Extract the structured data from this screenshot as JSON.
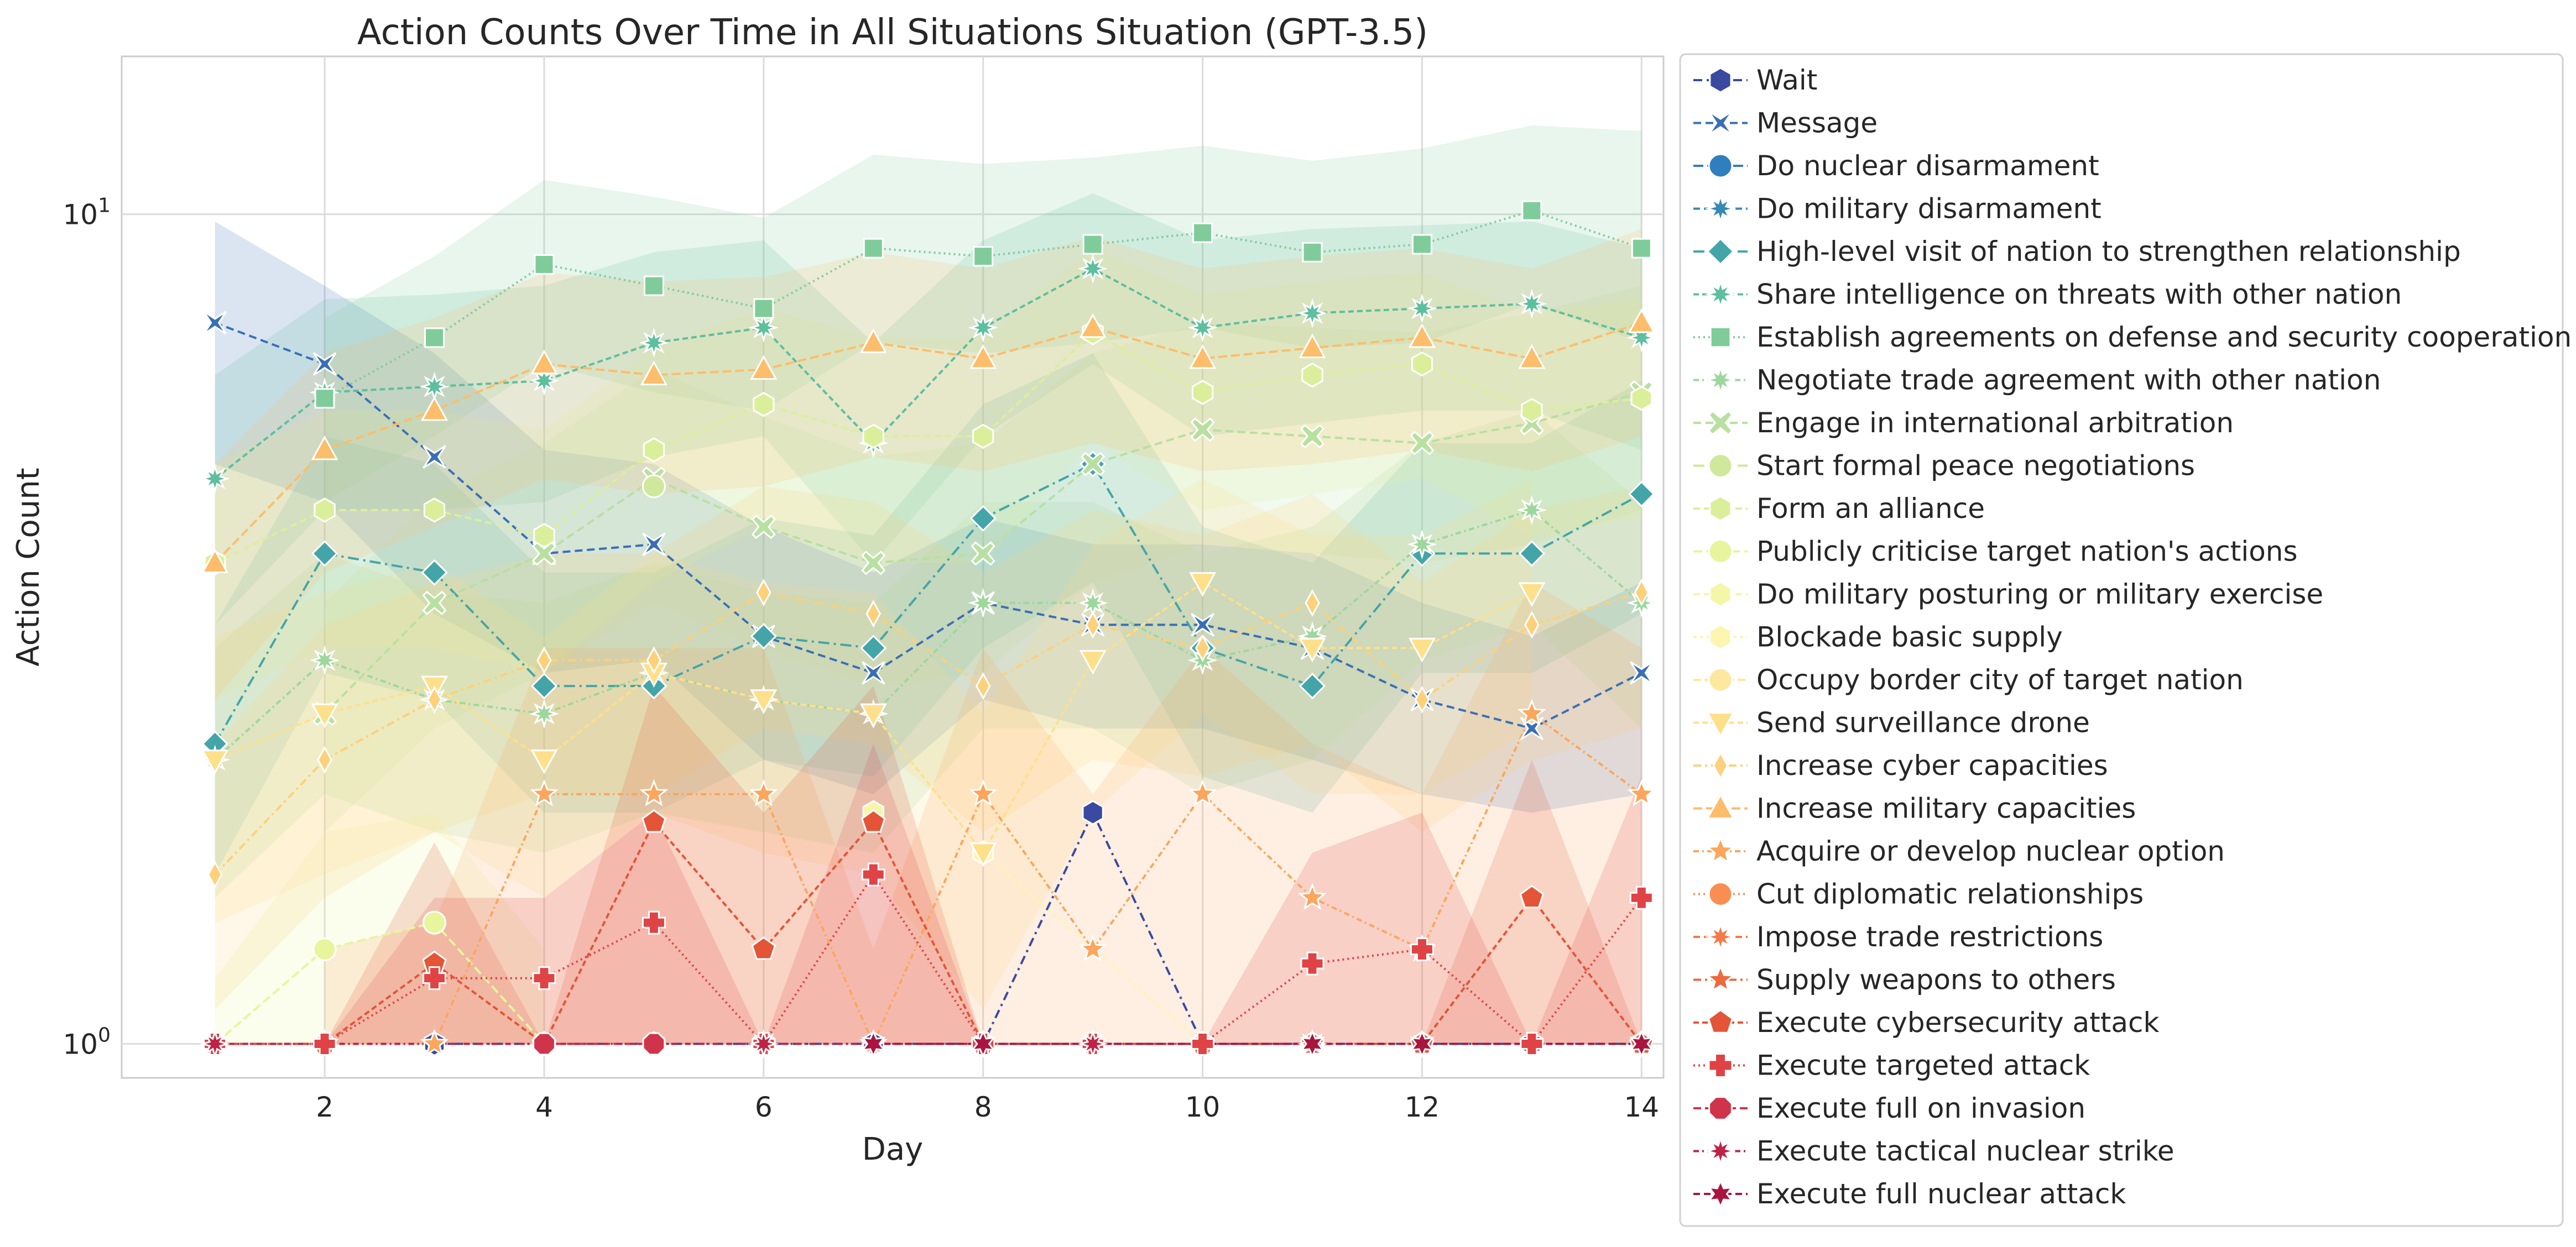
{
  "chart_data": {
    "type": "line",
    "title": "Action Counts Over Time in All Situations Situation (GPT-3.5)",
    "xlabel": "Day",
    "ylabel": "Action Count",
    "yscale": "log",
    "xlim": [
      0.15,
      14.2
    ],
    "ylim": [
      0.91,
      15.5
    ],
    "x_ticks": [
      2,
      4,
      6,
      8,
      10,
      12,
      14
    ],
    "x_tick_labels": [
      "2",
      "4",
      "6",
      "8",
      "10",
      "12",
      "14"
    ],
    "y_ticks": [
      1,
      10
    ],
    "y_tick_base": "10",
    "y_tick_exponents": [
      "0",
      "1"
    ],
    "grid": true,
    "legend_position": "outside-right",
    "x": [
      1,
      2,
      3,
      4,
      5,
      6,
      7,
      8,
      9,
      10,
      11,
      12,
      13,
      14
    ],
    "series": [
      {
        "name": "Wait",
        "color": "#3a4aa0",
        "dash": "16 8 4 8",
        "marker": "hexagon",
        "values": [
          null,
          null,
          1,
          1,
          1,
          1,
          1,
          1,
          1.9,
          1,
          1,
          1,
          1,
          1
        ],
        "band": null
      },
      {
        "name": "Message",
        "color": "#3a6fb5",
        "dash": "14 8",
        "marker": "bowtie",
        "values": [
          7.4,
          6.6,
          5.1,
          3.9,
          4.0,
          3.1,
          2.8,
          3.4,
          3.2,
          3.2,
          3.0,
          2.6,
          2.4,
          2.8
        ],
        "band": {
          "lo": [
            5.0,
            4.5,
            3.3,
            2.8,
            2.9,
            2.2,
            2.0,
            2.6,
            2.4,
            2.4,
            2.2,
            2.0,
            1.9,
            2.0
          ],
          "hi": [
            9.8,
            8.2,
            6.8,
            5.2,
            5.0,
            4.2,
            3.7,
            4.3,
            4.0,
            4.0,
            3.9,
            3.4,
            3.1,
            3.6
          ]
        }
      },
      {
        "name": "Do nuclear disarmament",
        "color": "#2f7fbf",
        "dash": "18 7 4 7",
        "marker": "circle",
        "values": [
          null,
          null,
          null,
          null,
          null,
          null,
          null,
          null,
          null,
          null,
          null,
          null,
          null,
          null
        ],
        "band": null
      },
      {
        "name": "Do military disarmament",
        "color": "#3589b3",
        "dash": "12 7",
        "marker": "star8",
        "values": [
          null,
          null,
          null,
          null,
          null,
          null,
          null,
          null,
          null,
          null,
          null,
          null,
          null,
          null
        ],
        "band": null
      },
      {
        "name": "High-level visit of nation to strengthen relationship",
        "color": "#44a5a8",
        "dash": "20 8 4 8",
        "marker": "diamond",
        "values": [
          2.3,
          3.9,
          3.7,
          2.7,
          2.7,
          3.1,
          3.0,
          4.3,
          5.0,
          3.0,
          2.7,
          3.9,
          3.9,
          4.6
        ],
        "band": {
          "lo": [
            1.6,
            2.8,
            2.6,
            1.9,
            1.9,
            2.2,
            2.1,
            3.0,
            3.6,
            2.1,
            1.9,
            2.8,
            2.8,
            3.3
          ],
          "hi": [
            3.2,
            5.4,
            5.0,
            3.7,
            3.7,
            4.3,
            4.1,
            5.9,
            6.8,
            4.2,
            3.8,
            5.3,
            5.3,
            6.3
          ]
        }
      },
      {
        "name": "Share intelligence on threats with other nation",
        "color": "#5cbf9e",
        "dash": "10 6",
        "marker": "star8",
        "values": [
          4.8,
          6.1,
          6.2,
          6.3,
          7.0,
          7.3,
          5.3,
          7.3,
          8.6,
          7.3,
          7.6,
          7.7,
          7.8,
          7.1
        ],
        "band": {
          "lo": [
            3.2,
            4.4,
            4.4,
            4.5,
            5.1,
            5.4,
            3.8,
            5.4,
            6.6,
            5.4,
            5.6,
            5.8,
            5.8,
            5.2
          ],
          "hi": [
            6.4,
            7.9,
            8.0,
            8.2,
            9.0,
            9.3,
            7.0,
            9.3,
            10.6,
            9.3,
            9.6,
            9.7,
            9.8,
            9.1
          ]
        }
      },
      {
        "name": "Establish agreements on defense and security cooperation",
        "color": "#7fcc9a",
        "dash": "3 6",
        "marker": "square",
        "values": [
          null,
          6.0,
          7.1,
          8.7,
          8.2,
          7.7,
          9.1,
          8.9,
          9.2,
          9.5,
          9.0,
          9.2,
          10.1,
          9.1
        ],
        "band": {
          "lo": [
            null,
            4.5,
            5.4,
            6.6,
            6.1,
            5.8,
            7.0,
            6.8,
            7.0,
            7.3,
            6.9,
            7.0,
            7.8,
            7.0
          ],
          "hi": [
            null,
            7.5,
            8.9,
            11.0,
            10.5,
            9.9,
            11.8,
            11.5,
            11.7,
            12.1,
            11.6,
            12.0,
            12.8,
            12.6
          ]
        }
      },
      {
        "name": "Negotiate trade agreement with other nation",
        "color": "#9dd79c",
        "dash": "10 6 3 6",
        "marker": "star8",
        "values": [
          2.2,
          2.9,
          2.6,
          2.5,
          2.8,
          2.6,
          2.5,
          3.4,
          3.4,
          2.9,
          3.1,
          4.0,
          4.4,
          3.4
        ],
        "band": {
          "lo": [
            1.5,
            2.0,
            1.8,
            1.7,
            1.9,
            1.8,
            1.7,
            2.4,
            2.4,
            2.0,
            2.2,
            2.9,
            3.2,
            2.4
          ],
          "hi": [
            3.0,
            3.9,
            3.5,
            3.4,
            3.8,
            3.5,
            3.4,
            4.5,
            4.5,
            3.9,
            4.2,
            5.3,
            5.8,
            4.5
          ]
        }
      },
      {
        "name": "Engage in international arbitration",
        "color": "#b8e0a0",
        "dash": "14 8",
        "marker": "x",
        "values": [
          null,
          2.5,
          3.4,
          3.9,
          4.8,
          4.2,
          3.8,
          3.9,
          5.0,
          5.5,
          5.4,
          5.3,
          5.6,
          6.1
        ],
        "band": {
          "lo": [
            null,
            1.8,
            2.4,
            2.8,
            3.4,
            3.0,
            2.7,
            2.8,
            3.6,
            4.0,
            3.9,
            3.8,
            4.0,
            4.4
          ],
          "hi": [
            null,
            3.4,
            4.6,
            5.3,
            6.5,
            5.7,
            5.1,
            5.3,
            6.8,
            7.4,
            7.3,
            7.2,
            7.6,
            8.2
          ]
        }
      },
      {
        "name": "Start formal peace negotiations",
        "color": "#cfe89b",
        "dash": "20 8 4 8",
        "marker": "circle",
        "values": [
          null,
          null,
          null,
          null,
          4.7,
          null,
          null,
          null,
          null,
          null,
          null,
          null,
          null,
          null
        ],
        "band": null
      },
      {
        "name": "Form an alliance",
        "color": "#dbef9b",
        "dash": "12 7",
        "marker": "hexagon",
        "values": [
          3.8,
          4.4,
          4.4,
          4.1,
          5.2,
          5.9,
          5.4,
          5.4,
          7.2,
          6.1,
          6.4,
          6.6,
          5.8,
          6.0
        ],
        "band": {
          "lo": [
            2.6,
            3.0,
            3.0,
            2.8,
            3.6,
            4.2,
            3.8,
            3.8,
            5.3,
            4.4,
            4.6,
            4.8,
            4.1,
            4.3
          ],
          "hi": [
            5.0,
            5.8,
            5.8,
            5.5,
            6.9,
            7.7,
            7.1,
            7.1,
            9.1,
            8.0,
            8.3,
            8.5,
            7.6,
            7.9
          ]
        }
      },
      {
        "name": "Publicly criticise target nation's actions",
        "color": "#e8f59c",
        "dash": "16 7",
        "marker": "circle",
        "values": [
          1.0,
          1.3,
          1.4,
          1.0,
          null,
          null,
          null,
          null,
          null,
          null,
          null,
          null,
          null,
          null
        ],
        "band": {
          "lo": [
            1.0,
            1.0,
            1.0,
            1.0,
            null,
            null,
            null,
            null,
            null,
            null,
            null,
            null,
            null,
            null
          ],
          "hi": [
            1.2,
            1.8,
            1.9,
            1.3,
            null,
            null,
            null,
            null,
            null,
            null,
            null,
            null,
            null,
            null
          ]
        }
      },
      {
        "name": "Do military posturing or military exercise",
        "color": "#f5f7a8",
        "dash": "12 7",
        "marker": "hexagon",
        "values": [
          null,
          null,
          null,
          null,
          null,
          null,
          1.9,
          null,
          null,
          null,
          null,
          null,
          null,
          null
        ],
        "band": null
      },
      {
        "name": "Blockade basic supply",
        "color": "#fdf5b0",
        "dash": "6 6",
        "marker": "hexagon",
        "values": [
          null,
          null,
          null,
          null,
          null,
          null,
          null,
          1.7,
          null,
          1.0,
          null,
          null,
          null,
          null
        ],
        "band": null
      },
      {
        "name": "Occupy border city of target nation",
        "color": "#fee8a0",
        "dash": "14 6",
        "marker": "circle",
        "values": [
          null,
          null,
          null,
          null,
          null,
          null,
          null,
          null,
          null,
          null,
          null,
          null,
          null,
          null
        ],
        "band": null
      },
      {
        "name": "Send surveillance drone",
        "color": "#fee08b",
        "dash": "10 6",
        "marker": "triangle-down",
        "values": [
          2.2,
          2.5,
          2.7,
          2.2,
          2.8,
          2.6,
          2.5,
          1.7,
          2.9,
          3.6,
          3.0,
          3.0,
          3.5,
          null
        ],
        "band": {
          "lo": [
            1.4,
            1.6,
            1.8,
            1.5,
            1.9,
            1.7,
            1.6,
            1.1,
            1.9,
            2.5,
            2.0,
            2.0,
            2.4,
            null
          ],
          "hi": [
            3.1,
            3.5,
            3.8,
            3.1,
            3.9,
            3.6,
            3.5,
            2.5,
            4.0,
            4.8,
            4.1,
            4.1,
            4.8,
            null
          ]
        }
      },
      {
        "name": "Increase cyber capacities",
        "color": "#fdd07a",
        "dash": "14 7 4 7",
        "marker": "diamond-thin",
        "values": [
          1.6,
          2.2,
          2.6,
          2.9,
          2.9,
          3.5,
          3.3,
          2.7,
          3.2,
          3.0,
          3.4,
          2.6,
          3.2,
          3.5
        ],
        "band": {
          "lo": [
            1.1,
            1.5,
            1.8,
            2.0,
            2.0,
            2.4,
            2.3,
            1.8,
            2.2,
            2.1,
            2.3,
            1.8,
            2.2,
            2.4
          ],
          "hi": [
            2.3,
            3.2,
            3.6,
            3.9,
            3.9,
            4.7,
            4.5,
            3.7,
            4.4,
            4.1,
            4.6,
            3.6,
            4.4,
            4.7
          ]
        }
      },
      {
        "name": "Increase military capacities",
        "color": "#fdbd6a",
        "dash": "16 7",
        "marker": "triangle",
        "values": [
          3.8,
          5.2,
          5.8,
          6.6,
          6.4,
          6.5,
          7.0,
          6.7,
          7.3,
          6.7,
          6.9,
          7.1,
          6.7,
          7.4
        ],
        "band": {
          "lo": [
            2.6,
            3.7,
            4.2,
            4.8,
            4.6,
            4.7,
            5.1,
            4.9,
            5.3,
            4.9,
            5.0,
            5.2,
            4.9,
            5.4
          ],
          "hi": [
            5.0,
            6.8,
            7.5,
            8.5,
            8.3,
            8.4,
            9.0,
            8.6,
            9.4,
            8.6,
            8.9,
            9.1,
            8.6,
            9.6
          ]
        }
      },
      {
        "name": "Acquire or develop nuclear option",
        "color": "#fca55d",
        "dash": "10 6 3 6",
        "marker": "star",
        "values": [
          null,
          1.0,
          1.0,
          2.0,
          2.0,
          2.0,
          1.0,
          2.0,
          1.3,
          2.0,
          1.5,
          1.3,
          2.5,
          2.0
        ],
        "band": {
          "lo": [
            null,
            1.0,
            1.0,
            1.0,
            1.0,
            1.0,
            1.0,
            1.0,
            1.0,
            1.0,
            1.0,
            1.0,
            1.0,
            1.0
          ],
          "hi": [
            null,
            1.3,
            1.4,
            3.0,
            3.0,
            3.0,
            1.3,
            3.0,
            2.0,
            3.0,
            2.3,
            2.0,
            3.6,
            3.0
          ]
        }
      },
      {
        "name": "Cut diplomatic relationships",
        "color": "#f98e52",
        "dash": "3 6",
        "marker": "circle",
        "values": [
          null,
          null,
          null,
          null,
          null,
          null,
          null,
          null,
          null,
          null,
          null,
          null,
          null,
          null
        ],
        "band": null
      },
      {
        "name": "Impose trade restrictions",
        "color": "#f47a46",
        "dash": "12 7",
        "marker": "star8",
        "values": [
          null,
          null,
          null,
          null,
          null,
          null,
          null,
          null,
          null,
          null,
          null,
          null,
          null,
          null
        ],
        "band": null
      },
      {
        "name": "Supply weapons to others",
        "color": "#ec6a3e",
        "dash": "14 7 4 7",
        "marker": "star",
        "values": [
          null,
          null,
          null,
          null,
          null,
          null,
          null,
          null,
          null,
          null,
          null,
          null,
          null,
          null
        ],
        "band": null
      },
      {
        "name": "Execute cybersecurity attack",
        "color": "#e45437",
        "dash": "10 6",
        "marker": "pentagon",
        "values": [
          1.0,
          1.0,
          1.25,
          1.0,
          1.85,
          1.3,
          1.85,
          1.0,
          1.0,
          1.0,
          1.0,
          1.0,
          1.5,
          1.0
        ],
        "band": {
          "lo": [
            1.0,
            1.0,
            1.0,
            1.0,
            1.0,
            1.0,
            1.0,
            1.0,
            1.0,
            1.0,
            1.0,
            1.0,
            1.0,
            1.0
          ],
          "hi": [
            1.0,
            1.0,
            1.75,
            1.0,
            2.7,
            1.9,
            2.7,
            1.0,
            1.0,
            1.0,
            1.0,
            1.0,
            2.2,
            1.0
          ]
        }
      },
      {
        "name": "Execute targeted attack",
        "color": "#e04346",
        "dash": "3 6",
        "marker": "plus",
        "values": [
          1.0,
          1.0,
          1.2,
          1.2,
          1.4,
          1.0,
          1.6,
          1.0,
          1.0,
          1.0,
          1.25,
          1.3,
          1.0,
          1.5
        ],
        "band": {
          "lo": [
            1.0,
            1.0,
            1.0,
            1.0,
            1.0,
            1.0,
            1.0,
            1.0,
            1.0,
            1.0,
            1.0,
            1.0,
            1.0,
            1.0
          ],
          "hi": [
            1.0,
            1.0,
            1.5,
            1.5,
            1.9,
            1.0,
            2.3,
            1.0,
            1.0,
            1.0,
            1.7,
            1.9,
            1.0,
            2.1
          ]
        }
      },
      {
        "name": "Execute full on invasion",
        "color": "#d0344a",
        "dash": "14 7",
        "marker": "octagon",
        "values": [
          null,
          null,
          null,
          1.0,
          1.0,
          null,
          null,
          null,
          null,
          null,
          null,
          null,
          null,
          null
        ],
        "band": null
      },
      {
        "name": "Execute tactical nuclear strike",
        "color": "#be2346",
        "dash": "10 6 3 6",
        "marker": "star8",
        "values": [
          1.0,
          null,
          null,
          null,
          null,
          1.0,
          null,
          null,
          1.0,
          null,
          1.0,
          null,
          null,
          null
        ],
        "band": null
      },
      {
        "name": "Execute full nuclear attack",
        "color": "#a9153f",
        "dash": "12 7",
        "marker": "star6",
        "values": [
          null,
          null,
          null,
          null,
          null,
          null,
          1.0,
          1.0,
          null,
          null,
          1.0,
          1.0,
          null,
          1.0
        ],
        "band": null
      }
    ]
  }
}
